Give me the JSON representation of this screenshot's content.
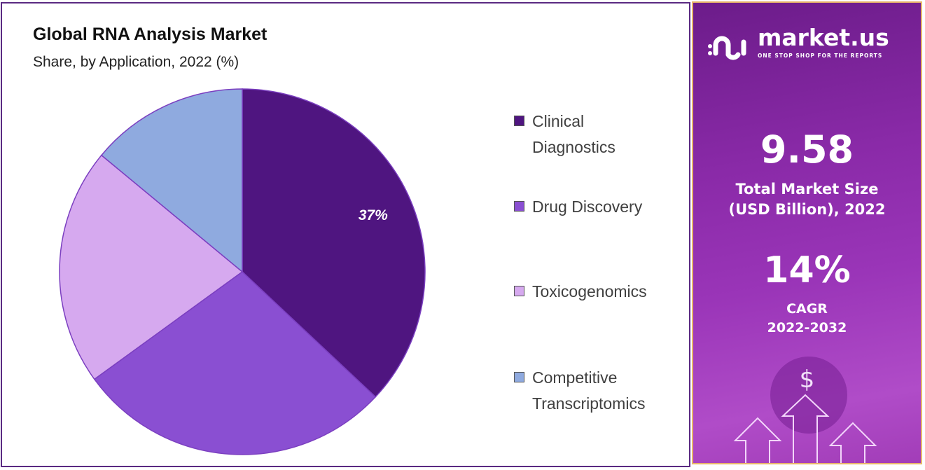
{
  "chart_data": {
    "type": "pie",
    "title": "Global RNA Analysis Market",
    "subtitle": "Share, by Application, 2022 (%)",
    "categories": [
      "Clinical Diagnostics",
      "Drug Discovery",
      "Toxicogenomics",
      "Competitive Transcriptomics"
    ],
    "values": [
      37,
      28,
      21,
      14
    ],
    "data_labels": [
      "37%",
      "",
      "",
      ""
    ],
    "colors": [
      "#4f1580",
      "#8a4fd2",
      "#d6a9ef",
      "#8faadf"
    ],
    "legend_position": "right",
    "legend": [
      {
        "line1": "Clinical",
        "line2": "Diagnostics"
      },
      {
        "line1": "Drug Discovery",
        "line2": ""
      },
      {
        "line1": "Toxicogenomics",
        "line2": ""
      },
      {
        "line1": "Competitive",
        "line2": "Transcriptomics"
      }
    ]
  },
  "side_panel": {
    "brand": "market.us",
    "tagline": "ONE STOP SHOP FOR THE REPORTS",
    "market_size": "9.58",
    "market_size_label_1": "Total Market Size",
    "market_size_label_2": "(USD Billion), 2022",
    "cagr": "14%",
    "cagr_label_1": "CAGR",
    "cagr_label_2": "2022-2032",
    "currency_symbol": "$"
  }
}
